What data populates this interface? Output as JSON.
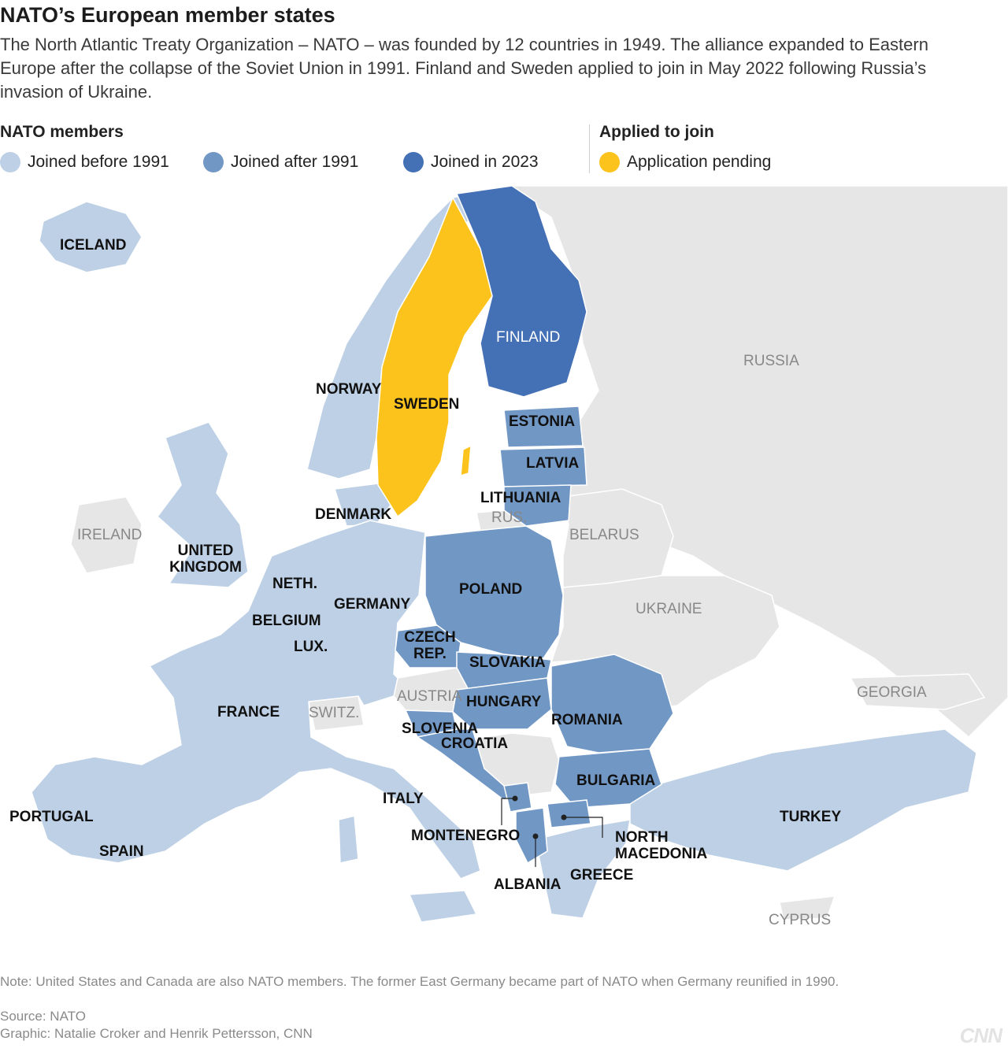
{
  "title": "NATO’s European member states",
  "subtitle": "The North Atlantic Treaty Organization – NATO – was founded by 12 countries in 1949. The alliance expanded to Eastern Europe after the collapse of the Soviet Union in 1991. Finland and Sweden applied to join in May 2022 following Russia’s invasion of Ukraine.",
  "legend": {
    "members_heading": "NATO members",
    "applied_heading": "Applied to join",
    "items": [
      {
        "label": "Joined before 1991",
        "color": "#bdd0e5"
      },
      {
        "label": "Joined after 1991",
        "color": "#7197c5"
      },
      {
        "label": "Joined in 2023",
        "color": "#4470b5"
      },
      {
        "label": "Application pending",
        "color": "#fcc31c"
      }
    ]
  },
  "colors": {
    "before_1991": "#bdd0e5",
    "after_1991": "#7197c5",
    "in_2023": "#4470b5",
    "pending": "#fcc31c",
    "non_member": "#e6e6e6",
    "water": "#ffffff"
  },
  "map": {
    "member_labels": {
      "iceland": "ICELAND",
      "norway": "NORWAY",
      "sweden": "SWEDEN",
      "finland": "FINLAND",
      "estonia": "ESTONIA",
      "latvia": "LATVIA",
      "lithuania": "LITHUANIA",
      "denmark": "DENMARK",
      "united_kingdom": "UNITED KINGDOM",
      "netherlands": "NETH.",
      "germany": "GERMANY",
      "poland": "POLAND",
      "belgium": "BELGIUM",
      "luxembourg": "LUX.",
      "czech_republic": "CZECH REP.",
      "slovakia": "SLOVAKIA",
      "hungary": "HUNGARY",
      "france": "FRANCE",
      "slovenia": "SLOVENIA",
      "croatia": "CROATIA",
      "romania": "ROMANIA",
      "bulgaria": "BULGARIA",
      "italy": "ITALY",
      "portugal": "PORTUGAL",
      "spain": "SPAIN",
      "montenegro": "MONTENEGRO",
      "north_macedonia": "NORTH MACEDONIA",
      "albania": "ALBANIA",
      "greece": "GREECE",
      "turkey": "TURKEY"
    },
    "nonmember_labels": {
      "russia": "RUSSIA",
      "ireland": "IRELAND",
      "russia_kaliningrad": "RUS.",
      "belarus": "BELARUS",
      "ukraine": "UKRAINE",
      "austria": "AUSTRIA",
      "switzerland": "SWITZ.",
      "georgia": "GEORGIA",
      "cyprus": "CYPRUS"
    }
  },
  "note": "Note: United States and Canada are also NATO members. The former East Germany became part of NATO when Germany reunified in 1990.",
  "source": "Source: NATO",
  "credit": "Graphic: Natalie Croker and Henrik Pettersson, CNN",
  "logo": "CNN"
}
